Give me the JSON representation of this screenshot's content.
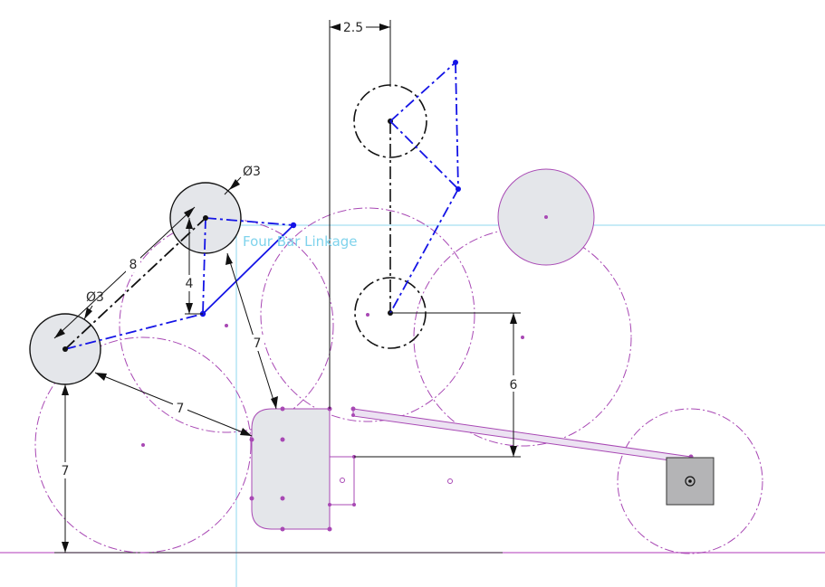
{
  "sketch": {
    "title": "Four Bar Linkage"
  },
  "dimensions": {
    "horizontal_offset": "2.5",
    "left_diameter": "Ø3",
    "upper_diameter": "Ø3",
    "link_length": "8",
    "vertical_gap": "4",
    "slant_length_upper": "7",
    "slant_length_lower": "7",
    "base_height": "7",
    "slider_height": "6"
  },
  "colors": {
    "construction": "#a848b4",
    "sketch_blue": "#1414e6",
    "geometry_black": "#111111",
    "fill_gray": "#e4e6ea",
    "origin_line": "#7fd3ec",
    "ground_line": "#c060c8"
  }
}
